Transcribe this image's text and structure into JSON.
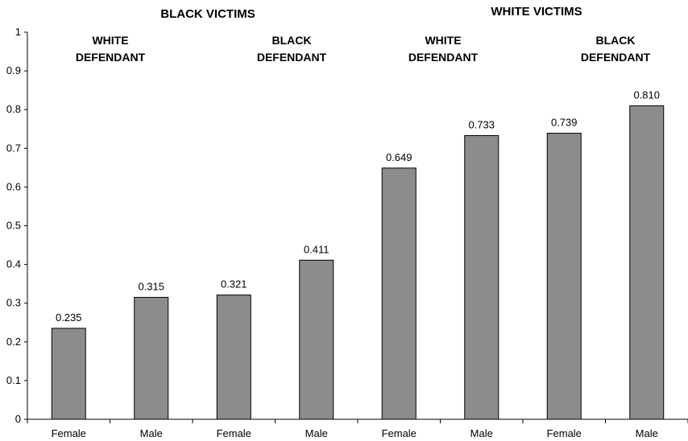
{
  "chart_data": {
    "type": "bar",
    "categories": [
      "Female",
      "Male",
      "Female",
      "Male",
      "Female",
      "Male",
      "Female",
      "Male"
    ],
    "values": [
      0.235,
      0.315,
      0.321,
      0.411,
      0.649,
      0.733,
      0.739,
      0.81
    ],
    "data_labels": [
      "0.235",
      "0.315",
      "0.321",
      "0.411",
      "0.649",
      "0.733",
      "0.739",
      "0.810"
    ],
    "ylim": [
      0,
      1
    ],
    "yticks": [
      "0",
      "0.1",
      "0.2",
      "0.3",
      "0.4",
      "0.5",
      "0.6",
      "0.7",
      "0.8",
      "0.9",
      "1"
    ],
    "groups": [
      {
        "label": "BLACK VICTIMS",
        "subgroups": [
          {
            "line1": "WHITE",
            "line2": "DEFENDANT"
          },
          {
            "line1": "BLACK",
            "line2": "DEFENDANT"
          }
        ]
      },
      {
        "label": "WHITE VICTIMS",
        "subgroups": [
          {
            "line1": "WHITE",
            "line2": "DEFENDANT"
          },
          {
            "line1": "BLACK",
            "line2": "DEFENDANT"
          }
        ]
      }
    ],
    "bar_color": "#8c8c8c",
    "bar_stroke": "#000000",
    "grid": false,
    "legend": "none"
  }
}
